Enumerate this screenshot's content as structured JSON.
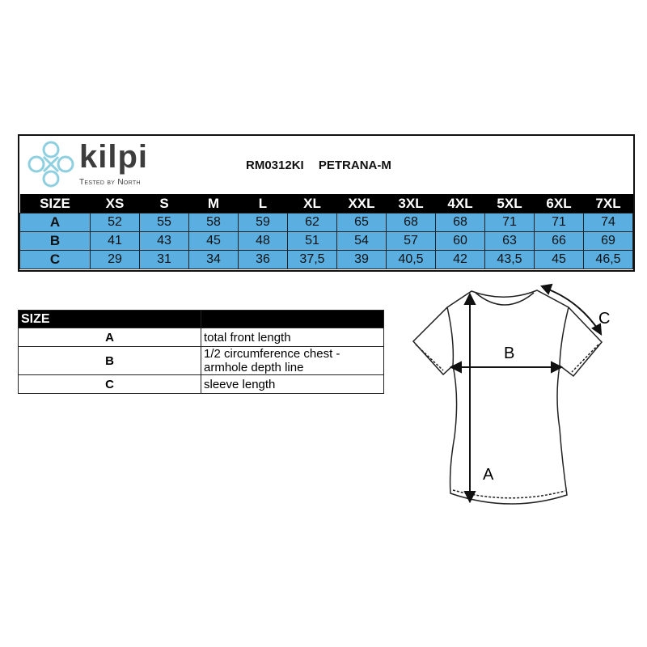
{
  "brand": {
    "name": "kilpi",
    "tagline": "Tested by North",
    "color": "#8ecfe0"
  },
  "product": {
    "code": "RM0312KI",
    "name": "PETRANA-M"
  },
  "size_table": {
    "header": [
      "SIZE",
      "XS",
      "S",
      "M",
      "L",
      "XL",
      "XXL",
      "3XL",
      "4XL",
      "5XL",
      "6XL",
      "7XL"
    ],
    "rows": [
      {
        "label": "A",
        "values": [
          "52",
          "55",
          "58",
          "59",
          "62",
          "65",
          "68",
          "68",
          "71",
          "71",
          "74"
        ]
      },
      {
        "label": "B",
        "values": [
          "41",
          "43",
          "45",
          "48",
          "51",
          "54",
          "57",
          "60",
          "63",
          "66",
          "69"
        ]
      },
      {
        "label": "C",
        "values": [
          "29",
          "31",
          "34",
          "36",
          "37,5",
          "39",
          "40,5",
          "42",
          "43,5",
          "45",
          "46,5"
        ]
      }
    ],
    "row_color": "#5aaee0"
  },
  "legend_table": {
    "header": "SIZE",
    "rows": [
      {
        "label": "A",
        "desc": "total front length"
      },
      {
        "label": "B",
        "desc": "1/2 circumference chest - armhole depth line"
      },
      {
        "label": "C",
        "desc": "sleeve length"
      }
    ]
  },
  "diagram": {
    "labels": {
      "a": "A",
      "b": "B",
      "c": "C"
    }
  }
}
